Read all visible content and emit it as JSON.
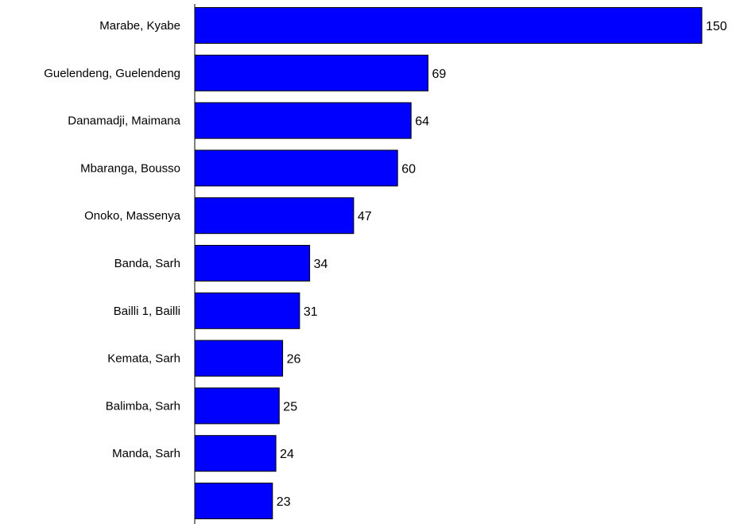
{
  "chart_data": {
    "type": "bar",
    "orientation": "horizontal",
    "categories": [
      "Marabe, Kyabe",
      "Guelendeng, Guelendeng",
      "Danamadji, Maimana",
      "Mbaranga, Bousso",
      "Onoko, Massenya",
      "Banda, Sarh",
      "Bailli 1, Bailli",
      "Kemata, Sarh",
      "Balimba, Sarh",
      "Manda, Sarh",
      ""
    ],
    "values": [
      150,
      69,
      64,
      60,
      47,
      34,
      31,
      26,
      25,
      24,
      23
    ],
    "data_labels": [
      "150",
      "69",
      "64",
      "60",
      "47",
      "34",
      "31",
      "26",
      "25",
      "24",
      "23"
    ],
    "title": "",
    "xlabel": "",
    "ylabel": "",
    "xlim": [
      0,
      150
    ],
    "grid": false,
    "legend": "none",
    "colors": {
      "bar_fill": "#0000ff",
      "bar_stroke": "#000000",
      "axis": "#000000",
      "text": "#000000"
    }
  }
}
